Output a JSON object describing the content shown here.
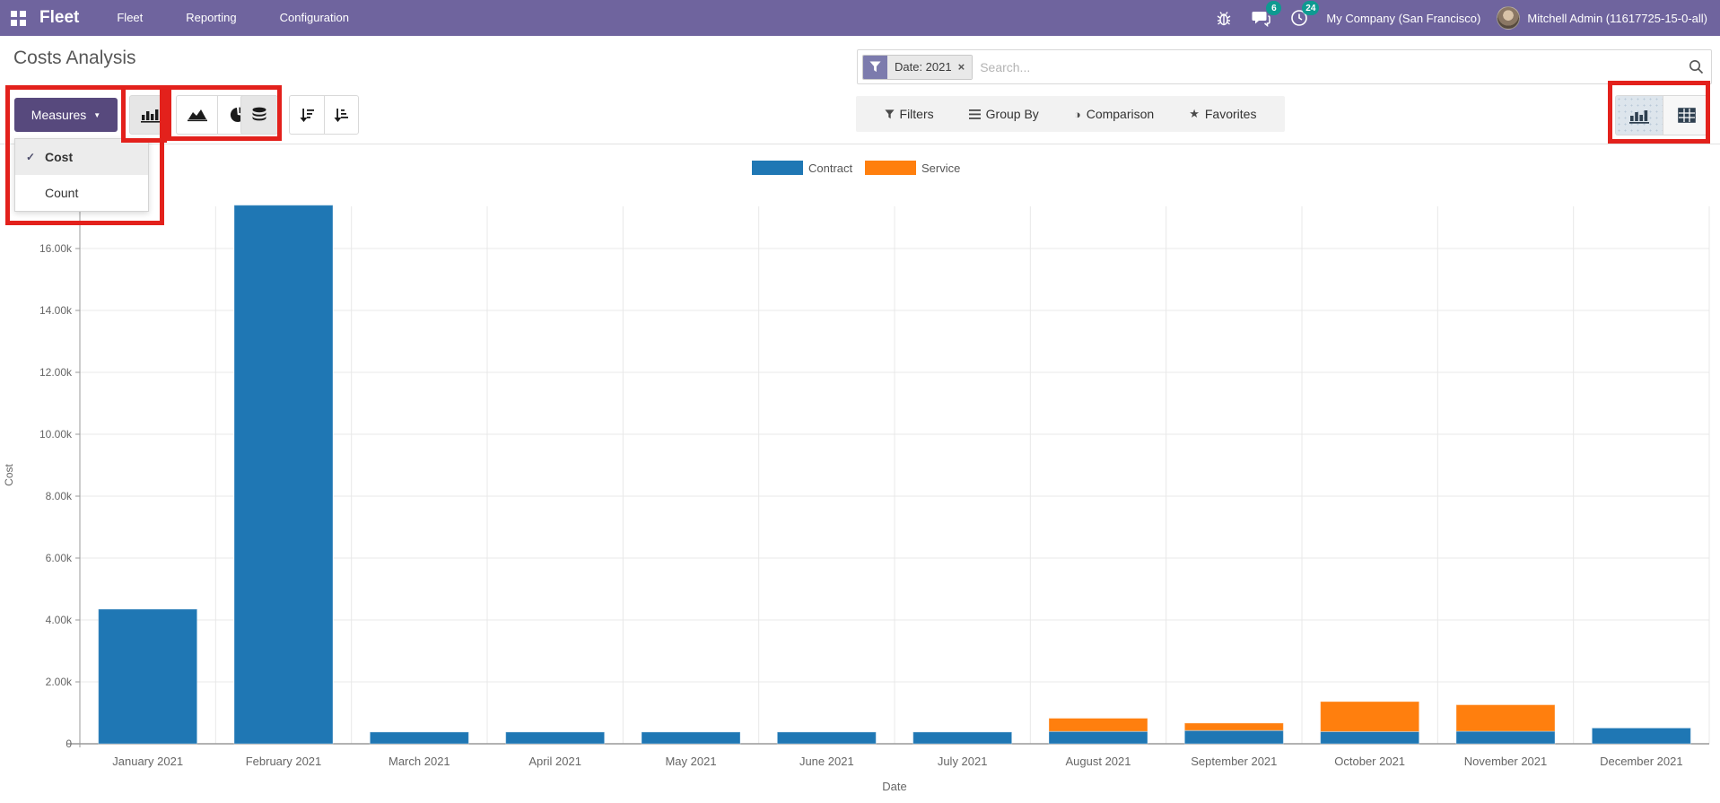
{
  "icons": {
    "caret_down": "▼",
    "check": "✓",
    "close_x": "×",
    "star": "★",
    "half_circle": "◑",
    "funnel": "▼"
  },
  "navbar": {
    "brand": "Fleet",
    "menu_items": [
      "Fleet",
      "Reporting",
      "Configuration"
    ],
    "message_badge": "6",
    "activity_badge": "24",
    "company": "My Company (San Francisco)",
    "user": "Mitchell Admin (11617725-15-0-all)"
  },
  "control_panel": {
    "title": "Costs Analysis",
    "measures_label": "Measures",
    "measures_menu": [
      {
        "label": "Cost",
        "checked": true
      },
      {
        "label": "Count",
        "checked": false
      }
    ],
    "search": {
      "facet_label": "Date: 2021",
      "placeholder": "Search..."
    },
    "filters_label": "Filters",
    "group_by_label": "Group By",
    "comparison_label": "Comparison",
    "favorites_label": "Favorites"
  },
  "chart_data": {
    "type": "bar",
    "stacked": true,
    "title": "",
    "xlabel": "Date",
    "ylabel": "Cost",
    "categories": [
      "January 2021",
      "February 2021",
      "March 2021",
      "April 2021",
      "May 2021",
      "June 2021",
      "July 2021",
      "August 2021",
      "September 2021",
      "October 2021",
      "November 2021",
      "December 2021"
    ],
    "series": [
      {
        "name": "Contract",
        "color": "#1f77b4",
        "values": [
          4350,
          17400,
          380,
          380,
          380,
          380,
          380,
          400,
          430,
          395,
          405,
          510
        ]
      },
      {
        "name": "Service",
        "color": "#ff7f0e",
        "values": [
          0,
          0,
          0,
          0,
          0,
          0,
          0,
          425,
          240,
          970,
          855,
          0
        ]
      }
    ],
    "ylim": [
      0,
      17600
    ],
    "y_tick_step": 2000,
    "y_tick_labels": [
      "0",
      "2.00k",
      "4.00k",
      "6.00k",
      "8.00k",
      "10.00k",
      "12.00k",
      "14.00k",
      "16.00k"
    ],
    "grid": true,
    "legend_position": "top"
  },
  "annotation_color": "#e3211c"
}
